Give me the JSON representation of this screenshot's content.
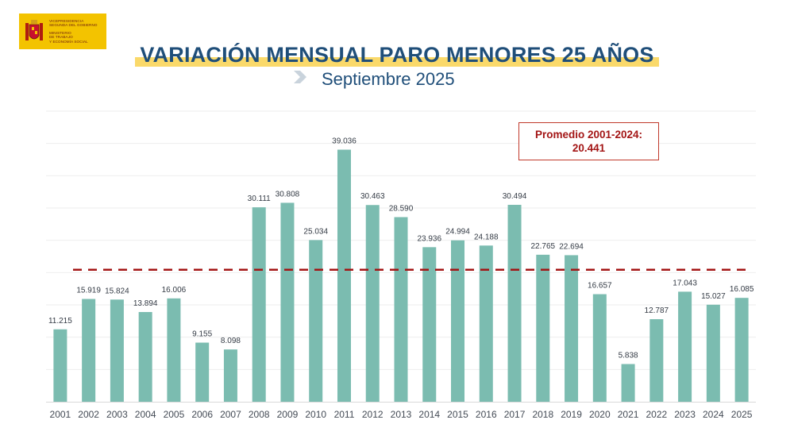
{
  "header": {
    "logo_lines": [
      "VICEPRESIDENCIA",
      "SEGUNDA DEL GOBIERNO",
      "",
      "MINISTERIO",
      "DE TRABAJO",
      "Y ECONOMÍA SOCIAL"
    ],
    "title": "VARIACIÓN MENSUAL PARO MENORES 25 AÑOS",
    "subtitle": "Septiembre 2025"
  },
  "average_box": {
    "label": "Promedio 2001-2024:",
    "value": "20.441"
  },
  "colors": {
    "bar": "#7bbcb0",
    "average_line": "#a31515",
    "title": "#1f4e79",
    "band": "#fad96a"
  },
  "chart_data": {
    "type": "bar",
    "title": "VARIACIÓN MENSUAL PARO MENORES 25 AÑOS",
    "subtitle": "Septiembre 2025",
    "categories": [
      "2001",
      "2002",
      "2003",
      "2004",
      "2005",
      "2006",
      "2007",
      "2008",
      "2009",
      "2010",
      "2011",
      "2012",
      "2013",
      "2014",
      "2015",
      "2016",
      "2017",
      "2018",
      "2019",
      "2020",
      "2021",
      "2022",
      "2023",
      "2024",
      "2025"
    ],
    "values": [
      11215,
      15919,
      15824,
      13894,
      16006,
      9155,
      8098,
      30111,
      30808,
      25034,
      39036,
      30463,
      28590,
      23936,
      24994,
      24188,
      30494,
      22765,
      22694,
      16657,
      5838,
      12787,
      17043,
      15027,
      16085
    ],
    "labels": [
      "11.215",
      "15.919",
      "15.824",
      "13.894",
      "16.006",
      "9.155",
      "8.098",
      "30.111",
      "30.808",
      "25.034",
      "39.036",
      "30.463",
      "28.590",
      "23.936",
      "24.994",
      "24.188",
      "30.494",
      "22.765",
      "22.694",
      "16.657",
      "5.838",
      "12.787",
      "17.043",
      "15.027",
      "16.085"
    ],
    "average": 20441,
    "average_label": "Promedio 2001-2024:",
    "ylim": [
      0,
      45000
    ],
    "grid": true,
    "xlabel": "",
    "ylabel": ""
  }
}
